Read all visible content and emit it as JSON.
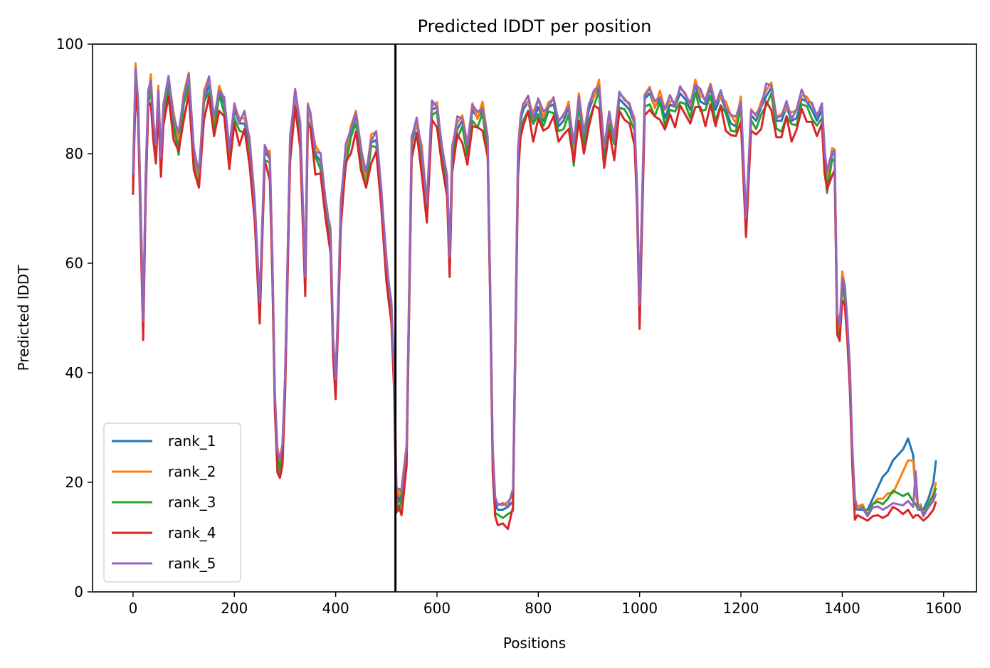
{
  "chart_data": {
    "type": "line",
    "title": "Predicted lDDT per position",
    "xlabel": "Positions",
    "ylabel": "Predicted lDDT",
    "xlim": [
      -80,
      1665
    ],
    "ylim": [
      0,
      100
    ],
    "xticks": [
      0,
      200,
      400,
      600,
      800,
      1000,
      1200,
      1400,
      1600
    ],
    "yticks": [
      0,
      20,
      40,
      60,
      80,
      100
    ],
    "grid": false,
    "legend": "lower-left",
    "vline": {
      "x": 518,
      "color": "#000000"
    },
    "x": [
      0,
      5,
      10,
      15,
      20,
      25,
      30,
      35,
      40,
      45,
      50,
      55,
      60,
      70,
      80,
      90,
      100,
      110,
      120,
      130,
      140,
      150,
      160,
      170,
      180,
      190,
      200,
      210,
      220,
      230,
      240,
      250,
      260,
      270,
      275,
      280,
      285,
      290,
      295,
      300,
      310,
      320,
      330,
      340,
      345,
      350,
      360,
      370,
      380,
      390,
      395,
      400,
      405,
      410,
      420,
      430,
      440,
      450,
      460,
      470,
      480,
      490,
      500,
      505,
      510,
      515,
      520,
      525,
      530,
      540,
      550,
      560,
      570,
      580,
      590,
      600,
      610,
      620,
      625,
      630,
      640,
      650,
      660,
      670,
      680,
      690,
      700,
      705,
      710,
      715,
      720,
      730,
      740,
      750,
      760,
      765,
      770,
      780,
      790,
      800,
      810,
      820,
      830,
      840,
      850,
      860,
      870,
      880,
      890,
      900,
      910,
      920,
      930,
      940,
      950,
      960,
      970,
      980,
      990,
      995,
      1000,
      1010,
      1020,
      1030,
      1040,
      1050,
      1060,
      1070,
      1080,
      1090,
      1100,
      1110,
      1120,
      1130,
      1140,
      1150,
      1160,
      1170,
      1180,
      1190,
      1200,
      1210,
      1220,
      1230,
      1240,
      1250,
      1260,
      1270,
      1280,
      1290,
      1300,
      1310,
      1320,
      1330,
      1340,
      1350,
      1360,
      1365,
      1370,
      1380,
      1385,
      1390,
      1395,
      1400,
      1405,
      1410,
      1415,
      1420,
      1425,
      1430,
      1440,
      1450,
      1460,
      1470,
      1480,
      1490,
      1500,
      1510,
      1520,
      1530,
      1540,
      1545,
      1550,
      1555,
      1560,
      1570,
      1580,
      1585
    ],
    "base": [
      75,
      95,
      88,
      70,
      48,
      75,
      90,
      93,
      85,
      80,
      91,
      78,
      88,
      93,
      86,
      82,
      90,
      93,
      80,
      75,
      90,
      93,
      85,
      91,
      89,
      80,
      88,
      85,
      86,
      82,
      70,
      52,
      80,
      79,
      60,
      35,
      25,
      23,
      26,
      38,
      82,
      90,
      85,
      56,
      88,
      86,
      80,
      79,
      70,
      65,
      45,
      38,
      52,
      70,
      80,
      84,
      86,
      80,
      75,
      82,
      83,
      72,
      60,
      55,
      52,
      40,
      18,
      17,
      18,
      25,
      82,
      85,
      80,
      70,
      88,
      88,
      80,
      75,
      60,
      80,
      85,
      86,
      80,
      88,
      86,
      88,
      82,
      55,
      25,
      16,
      15,
      15,
      15,
      17,
      80,
      85,
      88,
      89,
      86,
      89,
      86,
      88,
      89,
      85,
      86,
      88,
      80,
      90,
      82,
      88,
      90,
      92,
      80,
      86,
      82,
      90,
      89,
      88,
      85,
      72,
      52,
      89,
      91,
      88,
      90,
      87,
      89,
      88,
      91,
      90,
      88,
      92,
      90,
      89,
      91,
      88,
      90,
      88,
      86,
      85,
      89,
      67,
      87,
      86,
      88,
      91,
      92,
      85,
      86,
      88,
      86,
      87,
      90,
      89,
      88,
      86,
      88,
      80,
      75,
      80,
      79,
      50,
      47,
      57,
      55,
      48,
      40,
      25,
      16,
      15,
      15,
      14,
      15,
      15,
      14,
      14,
      15,
      15,
      15,
      16,
      15,
      15,
      15,
      15,
      14,
      15,
      16,
      17
    ],
    "series": [
      {
        "name": "rank_1",
        "color": "#1f77b4",
        "offset": [
          0,
          0.5,
          -0.5,
          0,
          1,
          0,
          0.5,
          0,
          -0.5,
          0,
          0.5,
          0,
          0
        ],
        "tail": 0
      },
      {
        "name": "rank_2",
        "color": "#ff7f0e",
        "offset": [
          0.8,
          1.5,
          0.5,
          1,
          1.8,
          1.2,
          0.3,
          1.5,
          1,
          0.6,
          1.4,
          0.9,
          1.1
        ],
        "tail": 1
      },
      {
        "name": "rank_3",
        "color": "#2ca02c",
        "offset": [
          -1.5,
          -0.8,
          -2.2,
          -1,
          -0.4,
          -2,
          -1.2,
          -0.6,
          -1.8,
          -1,
          -0.3,
          -1.6,
          -0.9
        ],
        "tail": 2
      },
      {
        "name": "rank_4",
        "color": "#d62728",
        "offset": [
          -2.5,
          -3.5,
          -1.5,
          -4,
          -2,
          -3,
          -1.2,
          -3.8,
          -2.6,
          -1.8,
          -3.2,
          -2.2,
          -2.8
        ],
        "tail": 3
      },
      {
        "name": "rank_5",
        "color": "#9467bd",
        "offset": [
          1.2,
          0.6,
          1.8,
          0.4,
          1.5,
          0.9,
          1.6,
          0.3,
          1.1,
          1.7,
          0.5,
          1.3,
          0.8
        ],
        "tail": 4
      }
    ],
    "tail_offsets": [
      [
        0,
        0,
        1,
        2,
        4,
        7,
        8,
        9,
        10,
        11,
        12,
        10,
        4
      ],
      [
        0.5,
        1,
        0,
        1,
        2,
        3,
        4,
        3,
        5,
        7,
        8,
        9,
        3
      ],
      [
        0,
        0.5,
        0,
        1,
        1.5,
        2,
        3,
        3.5,
        3,
        2.5,
        2,
        1.5,
        1
      ],
      [
        -1,
        -1.5,
        -1,
        -1.2,
        -1,
        -0.5,
        0,
        0.5,
        0,
        -0.8,
        -1,
        -1.5,
        -1
      ],
      [
        0,
        0.3,
        -0.2,
        0.4,
        0.6,
        1,
        1.5,
        1.2,
        1,
        0.8,
        0.6,
        0.5,
        7
      ]
    ],
    "legend_entries": [
      "rank_1",
      "rank_2",
      "rank_3",
      "rank_4",
      "rank_5"
    ]
  }
}
